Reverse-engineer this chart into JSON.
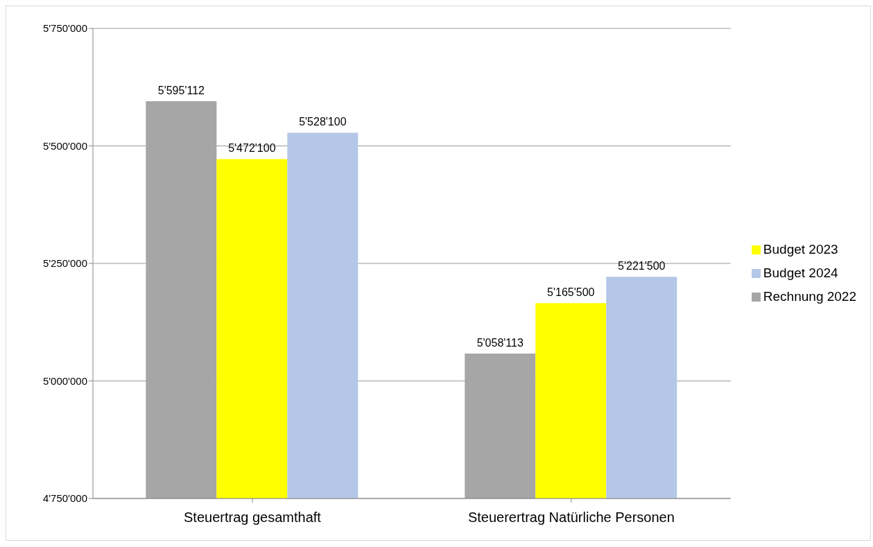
{
  "chart_data": {
    "type": "bar",
    "categories": [
      "Steuertrag gesamthaft",
      "Steuerertrag Natürliche Personen"
    ],
    "series": [
      {
        "name": "Rechnung 2022",
        "color": "#a6a6a6",
        "values": [
          5595112,
          5058113
        ],
        "value_labels": [
          "5'595'112",
          "5'058'113"
        ]
      },
      {
        "name": "Budget 2023",
        "color": "#ffff00",
        "values": [
          5472100,
          5165500
        ],
        "value_labels": [
          "5'472'100",
          "5'165'500"
        ]
      },
      {
        "name": "Budget 2024",
        "color": "#b4c7e7",
        "values": [
          5528100,
          5221500
        ],
        "value_labels": [
          "5'528'100",
          "5'221'500"
        ]
      }
    ],
    "ylim": [
      4750000,
      5750000
    ],
    "yticks": [
      {
        "value": 4750000,
        "label": "4'750'000"
      },
      {
        "value": 5000000,
        "label": "5'000'000"
      },
      {
        "value": 5250000,
        "label": "5'250'000"
      },
      {
        "value": 5500000,
        "label": "5'500'000"
      },
      {
        "value": 5750000,
        "label": "5'750'000"
      }
    ],
    "grid": "y",
    "legend": "right"
  }
}
